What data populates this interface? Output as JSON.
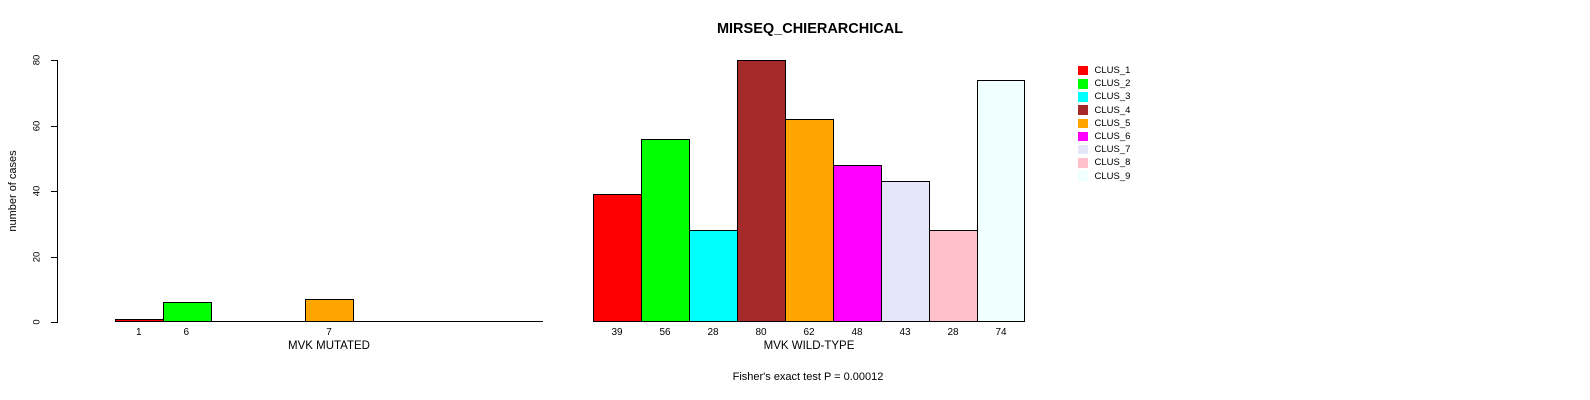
{
  "title": "MIRSEQ_CHIERARCHICAL",
  "annotation": "Fisher's exact test P = 0.00012",
  "y_axis": {
    "label": "number of cases",
    "ticks": [
      0,
      20,
      40,
      60,
      80
    ],
    "range": [
      0,
      80
    ]
  },
  "legend": {
    "items": [
      {
        "label": "CLUS_1",
        "color": "#FF0000"
      },
      {
        "label": "CLUS_2",
        "color": "#00FF00"
      },
      {
        "label": "CLUS_3",
        "color": "#00FFFF"
      },
      {
        "label": "CLUS_4",
        "color": "#A52A2A"
      },
      {
        "label": "CLUS_5",
        "color": "#FFA500"
      },
      {
        "label": "CLUS_6",
        "color": "#FF00FF"
      },
      {
        "label": "CLUS_7",
        "color": "#E6E6FA"
      },
      {
        "label": "CLUS_8",
        "color": "#FFC0CB"
      },
      {
        "label": "CLUS_9",
        "color": "#F0FFFF"
      }
    ]
  },
  "chart_data": [
    {
      "type": "bar",
      "title": "MIRSEQ_CHIERARCHICAL",
      "xlabel": "MVK MUTATED",
      "ylabel": "number of cases",
      "ylim": [
        0,
        80
      ],
      "grid": false,
      "legend_position": "right",
      "categories": [
        "CLUS_1",
        "CLUS_2",
        "CLUS_3",
        "CLUS_4",
        "CLUS_5",
        "CLUS_6",
        "CLUS_7",
        "CLUS_8",
        "CLUS_9"
      ],
      "values": [
        1,
        6,
        0,
        0,
        7,
        0,
        0,
        0,
        0
      ],
      "bar_labels": [
        "1",
        "6",
        "",
        "",
        "7",
        "",
        "",
        "",
        ""
      ],
      "colors": [
        "#FF0000",
        "#00FF00",
        "#00FFFF",
        "#A52A2A",
        "#FFA500",
        "#FF00FF",
        "#E6E6FA",
        "#FFC0CB",
        "#F0FFFF"
      ]
    },
    {
      "type": "bar",
      "title": "MIRSEQ_CHIERARCHICAL",
      "xlabel": "MVK WILD-TYPE",
      "ylabel": "number of cases",
      "ylim": [
        0,
        80
      ],
      "grid": false,
      "legend_position": "right",
      "categories": [
        "CLUS_1",
        "CLUS_2",
        "CLUS_3",
        "CLUS_4",
        "CLUS_5",
        "CLUS_6",
        "CLUS_7",
        "CLUS_8",
        "CLUS_9"
      ],
      "values": [
        39,
        56,
        28,
        80,
        62,
        48,
        43,
        28,
        74
      ],
      "bar_labels": [
        "39",
        "56",
        "28",
        "80",
        "62",
        "48",
        "43",
        "28",
        "74"
      ],
      "colors": [
        "#FF0000",
        "#00FF00",
        "#00FFFF",
        "#A52A2A",
        "#FFA500",
        "#FF00FF",
        "#E6E6FA",
        "#FFC0CB",
        "#F0FFFF"
      ]
    }
  ]
}
